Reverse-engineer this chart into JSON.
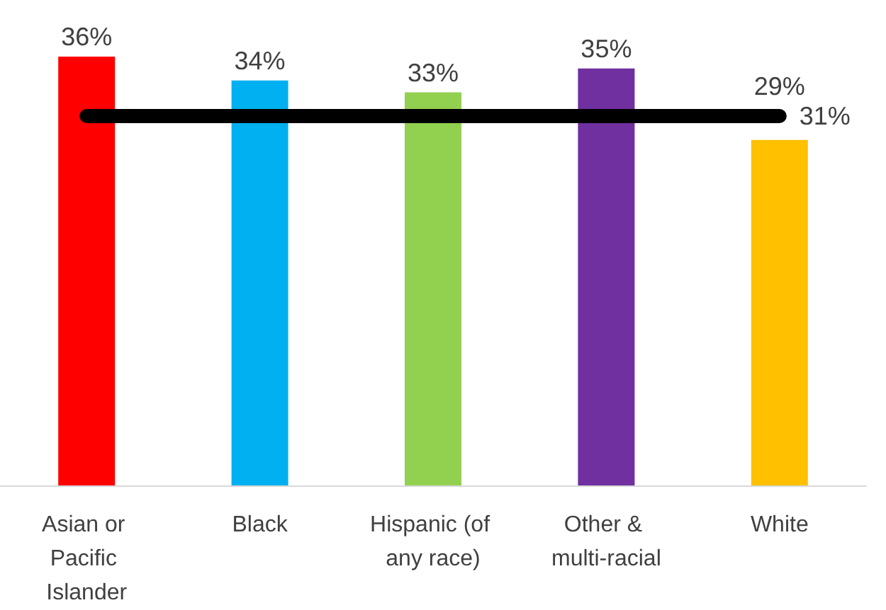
{
  "chart_data": {
    "type": "bar",
    "categories": [
      "Asian or Pacific Islander",
      "Black",
      "Hispanic (of any race)",
      "Other & multi-racial",
      "White"
    ],
    "values": [
      36,
      34,
      33,
      35,
      29
    ],
    "colors": [
      "#ff0000",
      "#00b0f0",
      "#92d050",
      "#7030a0",
      "#ffc000"
    ],
    "value_labels": [
      "36%",
      "34%",
      "33%",
      "35%",
      "29%"
    ],
    "ref_lines": [
      {
        "axis": "y",
        "value": 31,
        "label": "31%",
        "color": "#000000"
      }
    ],
    "grid": false
  }
}
